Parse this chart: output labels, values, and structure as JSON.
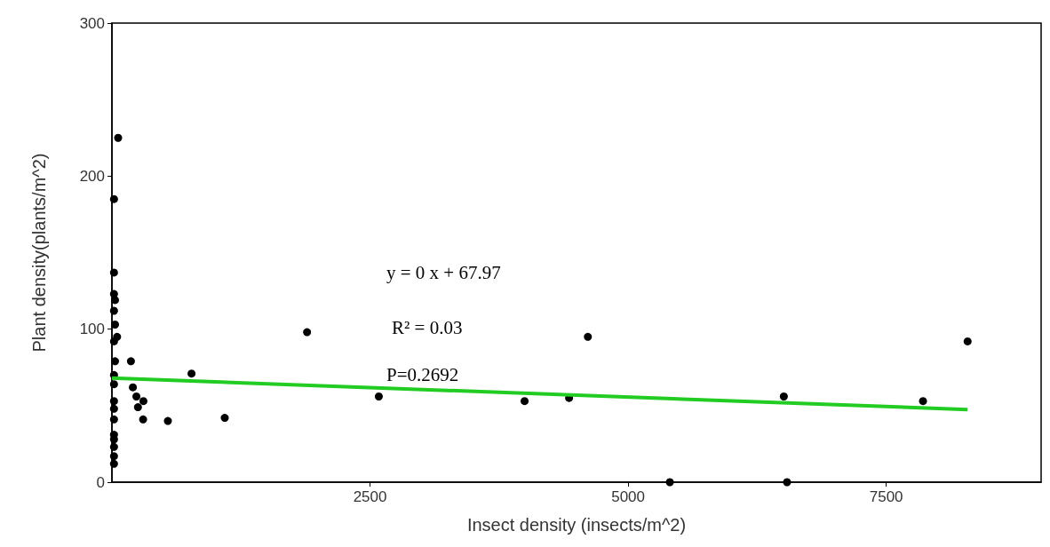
{
  "chart_data": {
    "type": "scatter",
    "xlabel": "Insect density (insects/m^2)",
    "ylabel": "Plant density(plants/m^2)",
    "xlim": [
      0,
      9000
    ],
    "xticks": [
      2500,
      5000,
      7500
    ],
    "ylim": [
      0,
      300
    ],
    "yticks": [
      0,
      100,
      200,
      300
    ],
    "grid": false,
    "series": [
      {
        "marker": "circle",
        "color": "#000000",
        "x": [
          20,
          60,
          20,
          20,
          30,
          20,
          30,
          20,
          30,
          20,
          20,
          20,
          20,
          20,
          20,
          20,
          20,
          20,
          20,
          50,
          184,
          771,
          203,
          237,
          305,
          252,
          302,
          542,
          1093,
          1890,
          2585,
          3997,
          4610,
          4428,
          5404,
          6508,
          6539,
          7856,
          8288
        ],
        "values": [
          185,
          225,
          137,
          123,
          119,
          112,
          103,
          92,
          79,
          64,
          53,
          48,
          41,
          31,
          28,
          23,
          17,
          12,
          70,
          95,
          79,
          71,
          62,
          56,
          53,
          49,
          41,
          40,
          42,
          98,
          56,
          53,
          95,
          55,
          0,
          56,
          0,
          53,
          92
        ]
      },
      {
        "type": "line",
        "color": "#22cc22",
        "x": [
          0,
          8288
        ],
        "values": [
          68,
          47.5
        ]
      }
    ],
    "annotations": [
      "y = 0 x + 67.97",
      "R² = 0.03",
      "P=0.2692"
    ]
  }
}
